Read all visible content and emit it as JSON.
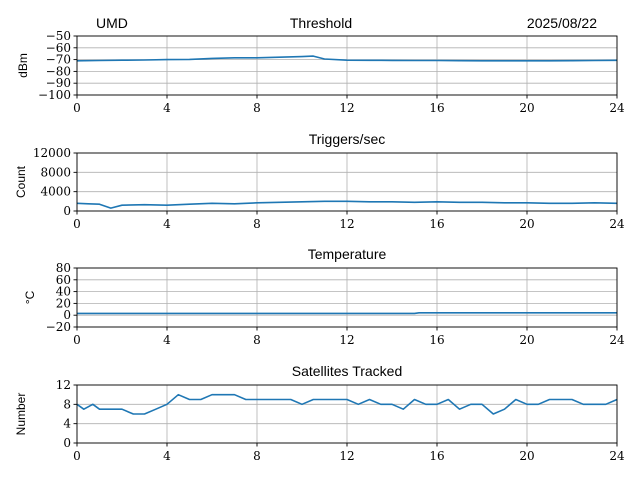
{
  "header": {
    "left": "UMD",
    "center": "Threshold",
    "right": "2025/08/22"
  },
  "chart_data": [
    {
      "type": "line",
      "title": "Threshold",
      "xlabel": "",
      "ylabel": "dBm",
      "xlim": [
        0,
        24
      ],
      "ylim": [
        -100,
        -50
      ],
      "xticks": [
        0,
        4,
        8,
        12,
        16,
        20,
        24
      ],
      "yticks": [
        -100,
        -90,
        -80,
        -70,
        -60,
        -50
      ],
      "ytick_labels": [
        "−100",
        "−90",
        "−80",
        "−70",
        "−60",
        "−50"
      ],
      "grid": true,
      "series": [
        {
          "color": "#1f77b4",
          "x": [
            0,
            1,
            2,
            3,
            4,
            5,
            6,
            7,
            8,
            9,
            10,
            10.5,
            11,
            12,
            13,
            14,
            15,
            16,
            17,
            18,
            19,
            20,
            21,
            22,
            23,
            24
          ],
          "y": [
            -71,
            -70.8,
            -70.5,
            -70.3,
            -70,
            -69.8,
            -69,
            -68.5,
            -68.5,
            -68,
            -67.5,
            -67,
            -69.5,
            -70.5,
            -70.6,
            -70.7,
            -70.8,
            -70.8,
            -70.9,
            -71,
            -71,
            -71,
            -71,
            -70.9,
            -70.8,
            -70.6
          ]
        }
      ]
    },
    {
      "type": "line",
      "title": "Triggers/sec",
      "xlabel": "",
      "ylabel": "Count",
      "xlim": [
        0,
        24
      ],
      "ylim": [
        0,
        12000
      ],
      "xticks": [
        0,
        4,
        8,
        12,
        16,
        20,
        24
      ],
      "yticks": [
        0,
        4000,
        8000,
        12000
      ],
      "ytick_labels": [
        "0",
        "4000",
        "8000",
        "12000"
      ],
      "grid": true,
      "series": [
        {
          "color": "#1f77b4",
          "x": [
            0,
            0.5,
            1,
            1.5,
            2,
            3,
            4,
            5,
            6,
            7,
            8,
            9,
            10,
            11,
            12,
            13,
            14,
            15,
            16,
            17,
            18,
            19,
            20,
            21,
            22,
            23,
            24
          ],
          "y": [
            1600,
            1500,
            1400,
            600,
            1200,
            1300,
            1200,
            1400,
            1600,
            1500,
            1700,
            1800,
            1900,
            2000,
            2000,
            1900,
            1900,
            1800,
            1900,
            1800,
            1800,
            1700,
            1700,
            1600,
            1600,
            1700,
            1600
          ]
        }
      ]
    },
    {
      "type": "line",
      "title": "Temperature",
      "xlabel": "",
      "ylabel": "°C",
      "xlim": [
        0,
        24
      ],
      "ylim": [
        -20,
        80
      ],
      "xticks": [
        0,
        4,
        8,
        12,
        16,
        20,
        24
      ],
      "yticks": [
        -20,
        0,
        20,
        40,
        60,
        80
      ],
      "ytick_labels": [
        "−20",
        "0",
        "20",
        "40",
        "60",
        "80"
      ],
      "grid": true,
      "series": [
        {
          "color": "#1f77b4",
          "x": [
            0,
            4,
            8,
            12,
            15,
            15.2,
            20,
            24
          ],
          "y": [
            3,
            3,
            3,
            3,
            3,
            4,
            4,
            4
          ]
        }
      ]
    },
    {
      "type": "line",
      "title": "Satellites Tracked",
      "xlabel": "",
      "ylabel": "Number",
      "xlim": [
        0,
        24
      ],
      "ylim": [
        0,
        12
      ],
      "xticks": [
        0,
        4,
        8,
        12,
        16,
        20,
        24
      ],
      "yticks": [
        0,
        4,
        8,
        12
      ],
      "ytick_labels": [
        "0",
        "4",
        "8",
        "12"
      ],
      "grid": true,
      "series": [
        {
          "color": "#1f77b4",
          "x": [
            0,
            0.3,
            0.7,
            1.0,
            1.5,
            2.0,
            2.5,
            3.0,
            3.5,
            4.0,
            4.5,
            5.0,
            5.5,
            6.0,
            6.5,
            7.0,
            7.5,
            8.0,
            8.5,
            9.0,
            9.5,
            10.0,
            10.5,
            11.0,
            11.5,
            12.0,
            12.5,
            13.0,
            13.5,
            14.0,
            14.5,
            15.0,
            15.5,
            16.0,
            16.5,
            17.0,
            17.5,
            18.0,
            18.5,
            19.0,
            19.5,
            20.0,
            20.5,
            21.0,
            21.5,
            22.0,
            22.5,
            23.0,
            23.5,
            24.0
          ],
          "y": [
            8,
            7,
            8,
            7,
            7,
            7,
            6,
            6,
            7,
            8,
            10,
            9,
            9,
            10,
            10,
            10,
            9,
            9,
            9,
            9,
            9,
            8,
            9,
            9,
            9,
            9,
            8,
            9,
            8,
            8,
            7,
            9,
            8,
            8,
            9,
            7,
            8,
            8,
            6,
            7,
            9,
            8,
            8,
            9,
            9,
            9,
            8,
            8,
            8,
            9
          ]
        }
      ]
    }
  ]
}
